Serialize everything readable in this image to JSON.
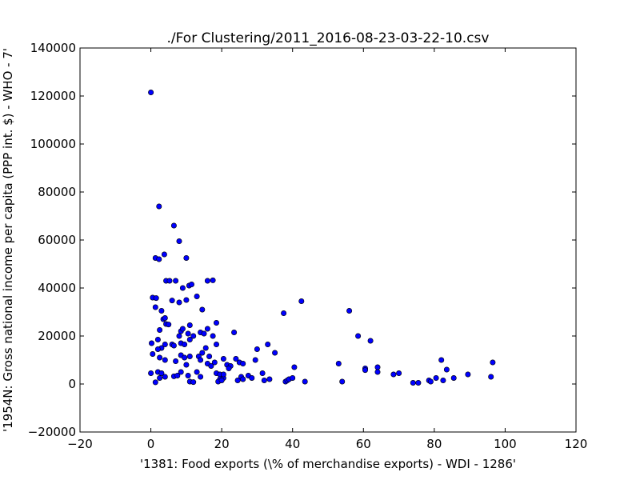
{
  "chart_data": {
    "type": "scatter",
    "title": "./For Clustering/2011_2016-08-23-03-22-10.csv",
    "xlabel": "'1381: Food exports  (\\% of merchandise exports) - WDI - 1286'",
    "ylabel": "'1954N: Gross national income per capita (PPP int. $) - WHO - 7'",
    "xlim": [
      -20,
      120
    ],
    "ylim": [
      -20000,
      140000
    ],
    "xticks": [
      -20,
      0,
      20,
      40,
      60,
      80,
      100,
      120
    ],
    "yticks": [
      -20000,
      0,
      20000,
      40000,
      60000,
      80000,
      100000,
      120000,
      140000
    ],
    "grid": false,
    "marker_color": "#0000ff",
    "points": [
      [
        0.0,
        121500
      ],
      [
        2.3,
        74000
      ],
      [
        6.5,
        66000
      ],
      [
        8.0,
        59500
      ],
      [
        1.3,
        52500
      ],
      [
        2.3,
        52000
      ],
      [
        3.8,
        54000
      ],
      [
        10.0,
        52500
      ],
      [
        4.3,
        43000
      ],
      [
        5.3,
        43000
      ],
      [
        7.0,
        43000
      ],
      [
        9.0,
        40000
      ],
      [
        10.8,
        41000
      ],
      [
        11.5,
        41500
      ],
      [
        16.0,
        43000
      ],
      [
        17.5,
        43200
      ],
      [
        0.5,
        36000
      ],
      [
        1.5,
        35800
      ],
      [
        6.0,
        34800
      ],
      [
        8.0,
        34000
      ],
      [
        10.0,
        35000
      ],
      [
        13.0,
        36500
      ],
      [
        1.3,
        32000
      ],
      [
        3.0,
        30500
      ],
      [
        14.5,
        31000
      ],
      [
        3.5,
        27000
      ],
      [
        4.0,
        27500
      ],
      [
        4.3,
        25000
      ],
      [
        5.0,
        24800
      ],
      [
        2.5,
        22500
      ],
      [
        8.5,
        22000
      ],
      [
        9.0,
        23000
      ],
      [
        11.0,
        24500
      ],
      [
        14.0,
        21500
      ],
      [
        15.0,
        21000
      ],
      [
        16.0,
        23000
      ],
      [
        18.5,
        25500
      ],
      [
        8.0,
        20000
      ],
      [
        10.5,
        21000
      ],
      [
        12.0,
        20000
      ],
      [
        17.5,
        20000
      ],
      [
        0.2,
        17000
      ],
      [
        2.0,
        18500
      ],
      [
        3.0,
        15000
      ],
      [
        4.0,
        16500
      ],
      [
        6.0,
        16500
      ],
      [
        6.5,
        16000
      ],
      [
        8.5,
        17000
      ],
      [
        9.5,
        16500
      ],
      [
        11.0,
        18500
      ],
      [
        2.0,
        14500
      ],
      [
        14.5,
        13000
      ],
      [
        15.5,
        15000
      ],
      [
        18.5,
        16500
      ],
      [
        0.5,
        12500
      ],
      [
        2.5,
        11000
      ],
      [
        4.0,
        10000
      ],
      [
        8.5,
        12000
      ],
      [
        9.5,
        11000
      ],
      [
        11.0,
        11500
      ],
      [
        13.5,
        11500
      ],
      [
        16.5,
        11500
      ],
      [
        7.0,
        9500
      ],
      [
        10.0,
        8000
      ],
      [
        14.0,
        10000
      ],
      [
        16.0,
        8500
      ],
      [
        17.0,
        7500
      ],
      [
        18.0,
        9000
      ],
      [
        20.5,
        10500
      ],
      [
        21.5,
        8000
      ],
      [
        22.5,
        7500
      ],
      [
        22.0,
        6500
      ],
      [
        24.0,
        10500
      ],
      [
        25.0,
        9000
      ],
      [
        26.0,
        8500
      ],
      [
        0.0,
        4500
      ],
      [
        2.0,
        5000
      ],
      [
        3.0,
        4500
      ],
      [
        2.5,
        2500
      ],
      [
        4.0,
        3000
      ],
      [
        1.3,
        700
      ],
      [
        6.5,
        3200
      ],
      [
        7.5,
        3500
      ],
      [
        8.5,
        5000
      ],
      [
        10.5,
        3500
      ],
      [
        11.0,
        1000
      ],
      [
        12.0,
        800
      ],
      [
        13.0,
        5000
      ],
      [
        14.0,
        3000
      ],
      [
        18.5,
        4500
      ],
      [
        19.5,
        4000
      ],
      [
        19.5,
        2000
      ],
      [
        20.5,
        2500
      ],
      [
        20.5,
        4000
      ],
      [
        19.0,
        1000
      ],
      [
        20.0,
        1500
      ],
      [
        23.5,
        21500
      ],
      [
        24.5,
        1500
      ],
      [
        25.5,
        3000
      ],
      [
        26.0,
        2000
      ],
      [
        27.5,
        3500
      ],
      [
        28.5,
        2500
      ],
      [
        29.5,
        10000
      ],
      [
        30.0,
        14500
      ],
      [
        31.5,
        4500
      ],
      [
        32.0,
        1500
      ],
      [
        33.0,
        16500
      ],
      [
        33.5,
        2000
      ],
      [
        35.0,
        13000
      ],
      [
        37.5,
        29500
      ],
      [
        38.0,
        1000
      ],
      [
        38.5,
        1500
      ],
      [
        39.0,
        2000
      ],
      [
        40.0,
        2500
      ],
      [
        40.5,
        7000
      ],
      [
        42.5,
        34500
      ],
      [
        43.5,
        1000
      ],
      [
        53.0,
        8500
      ],
      [
        54.0,
        1000
      ],
      [
        56.0,
        30500
      ],
      [
        58.5,
        20000
      ],
      [
        60.5,
        6500
      ],
      [
        60.5,
        5800
      ],
      [
        62.0,
        18000
      ],
      [
        64.0,
        7000
      ],
      [
        64.0,
        5000
      ],
      [
        68.5,
        4000
      ],
      [
        70.0,
        4500
      ],
      [
        74.0,
        500
      ],
      [
        75.5,
        500
      ],
      [
        78.5,
        1500
      ],
      [
        79.0,
        1000
      ],
      [
        80.5,
        2500
      ],
      [
        82.0,
        10000
      ],
      [
        82.5,
        1500
      ],
      [
        83.5,
        6000
      ],
      [
        85.5,
        2500
      ],
      [
        89.5,
        4000
      ],
      [
        96.0,
        3000
      ],
      [
        96.5,
        9000
      ]
    ]
  }
}
